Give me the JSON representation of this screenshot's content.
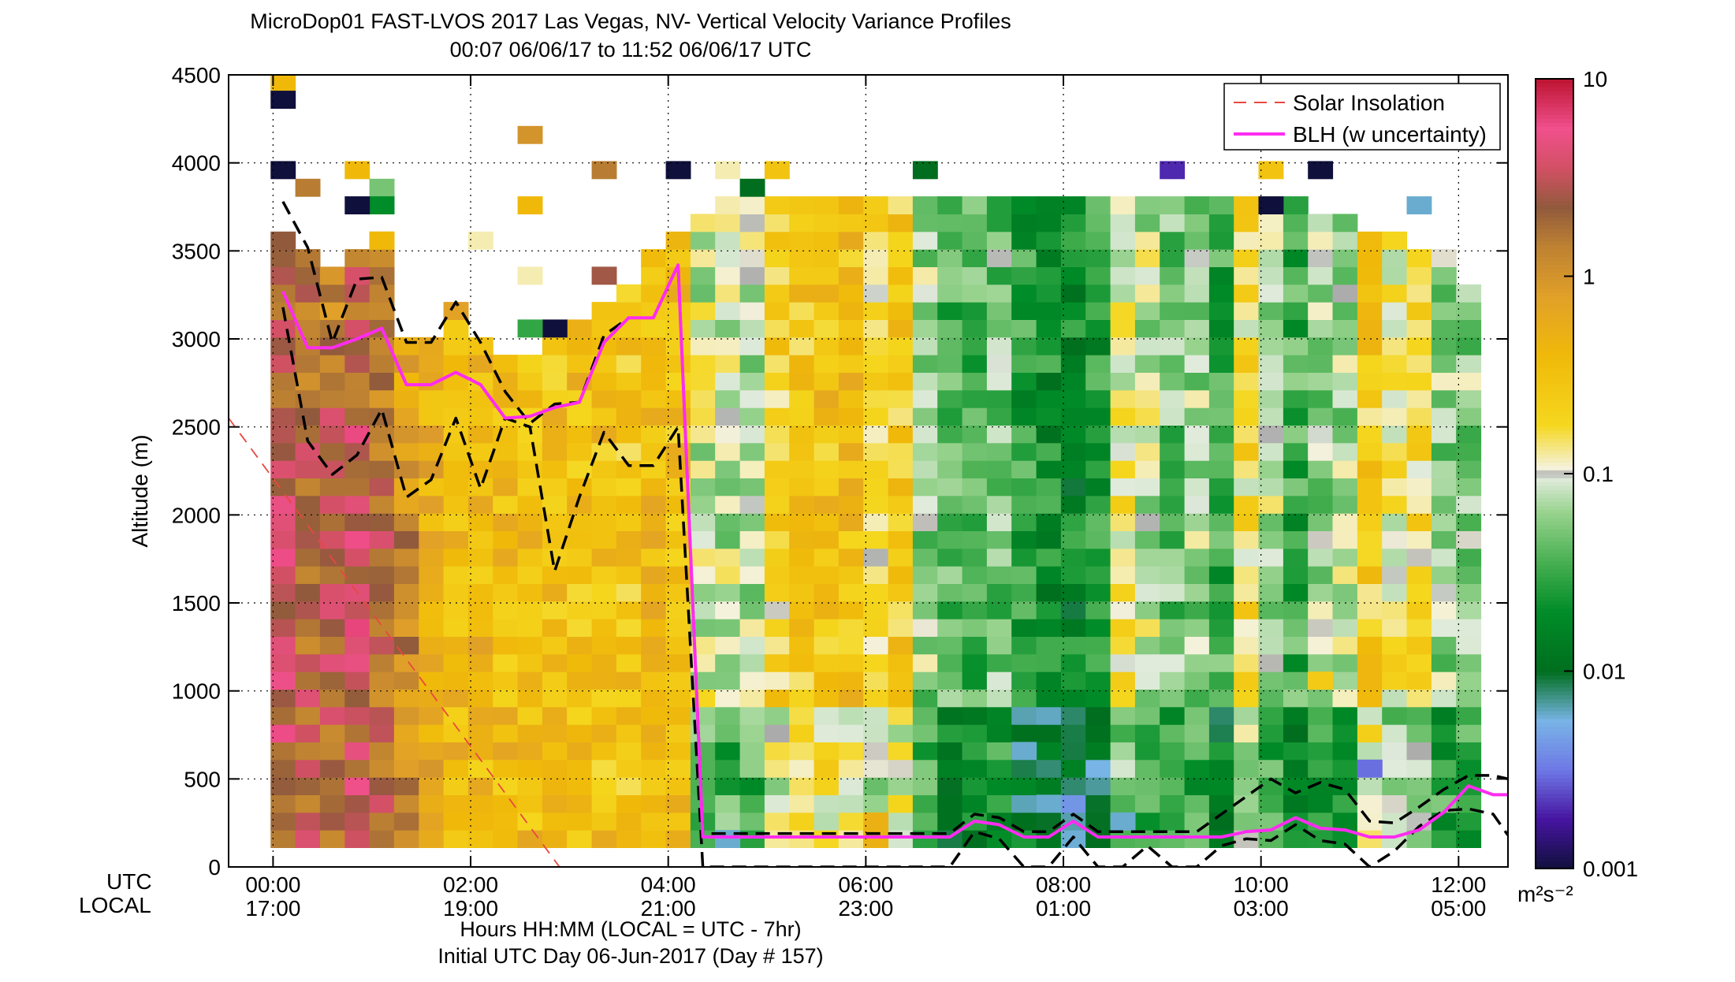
{
  "chart_data": {
    "type": "heatmap",
    "title": "MicroDop01 FAST-LVOS 2017 Las Vegas, NV- Vertical Velocity Variance Profiles",
    "subtitle": "00:07 06/06/17 to 11:52 06/06/17  UTC",
    "xlabel": "Hours HH:MM  (LOCAL = UTC - 7hr)",
    "xlabel2": "Initial UTC Day 06-Jun-2017 (Day # 157)",
    "ylabel": "Altitude (m)",
    "x_row_tags": [
      "UTC",
      "LOCAL"
    ],
    "x_ticks_utc": [
      "00:00",
      "02:00",
      "04:00",
      "06:00",
      "08:00",
      "10:00",
      "12:00"
    ],
    "x_ticks_local": [
      "17:00",
      "19:00",
      "21:00",
      "23:00",
      "01:00",
      "03:00",
      "05:00"
    ],
    "x_tick_hours": [
      0,
      2,
      4,
      6,
      8,
      10,
      12
    ],
    "xlim_hours": [
      -0.45,
      12.5
    ],
    "y_ticks": [
      0,
      500,
      1000,
      1500,
      2000,
      2500,
      3000,
      3500,
      4000,
      4500
    ],
    "ylim": [
      0,
      4500
    ],
    "grid": true,
    "colorbar": {
      "scale": "log",
      "range": [
        0.001,
        10
      ],
      "tick_labels": [
        "0.001",
        "0.01",
        "0.1",
        "1",
        "10"
      ],
      "units": "m²s⁻²"
    },
    "legend": {
      "placement": "top-right",
      "entries": [
        "Solar Insolation",
        "BLH (w uncertainty)"
      ]
    },
    "series": [
      {
        "name": "BLH (w uncertainty)",
        "x": [
          0.1,
          0.35,
          0.6,
          0.85,
          1.1,
          1.35,
          1.6,
          1.85,
          2.1,
          2.35,
          2.6,
          2.85,
          3.1,
          3.35,
          3.6,
          3.85,
          4.1,
          4.35,
          4.6,
          4.85,
          5.1,
          5.35,
          5.6,
          5.85,
          6.1,
          6.35,
          6.6,
          6.85,
          7.1,
          7.35,
          7.6,
          7.85,
          8.1,
          8.35,
          8.6,
          8.85,
          9.1,
          9.35,
          9.6,
          9.85,
          10.1,
          10.35,
          10.6,
          10.85,
          11.1,
          11.35,
          11.6,
          11.85,
          12.1,
          12.35,
          12.5
        ],
        "y": [
          3270,
          2950,
          2950,
          3000,
          3060,
          2740,
          2740,
          2810,
          2740,
          2550,
          2560,
          2610,
          2640,
          2980,
          3120,
          3120,
          3420,
          170,
          170,
          170,
          170,
          170,
          170,
          170,
          170,
          170,
          170,
          170,
          260,
          240,
          170,
          170,
          260,
          170,
          170,
          170,
          170,
          170,
          170,
          200,
          210,
          280,
          220,
          210,
          170,
          170,
          210,
          310,
          460,
          410,
          410
        ]
      },
      {
        "name": "BLH upper bound",
        "x": [
          0.1,
          0.35,
          0.6,
          0.85,
          1.1,
          1.35,
          1.6,
          1.85,
          2.1,
          2.35,
          2.6,
          2.85,
          3.1,
          3.35,
          3.6,
          3.85,
          4.1,
          4.35,
          4.6,
          4.85,
          5.1,
          5.35,
          5.6,
          5.85,
          6.1,
          6.35,
          6.6,
          6.85,
          7.1,
          7.35,
          7.6,
          7.85,
          8.1,
          8.35,
          8.6,
          8.85,
          9.1,
          9.35,
          9.6,
          9.85,
          10.1,
          10.35,
          10.6,
          10.85,
          11.1,
          11.35,
          11.6,
          11.85,
          12.1,
          12.35,
          12.5
        ],
        "y": [
          3780,
          3520,
          2980,
          3340,
          3350,
          2980,
          2980,
          3210,
          2980,
          2700,
          2520,
          2630,
          2640,
          3020,
          3120,
          3120,
          3420,
          190,
          190,
          190,
          190,
          190,
          190,
          190,
          190,
          190,
          190,
          190,
          300,
          280,
          200,
          200,
          300,
          200,
          200,
          200,
          200,
          200,
          300,
          400,
          500,
          420,
          480,
          440,
          260,
          250,
          340,
          440,
          520,
          520,
          500
        ]
      },
      {
        "name": "BLH lower bound",
        "x": [
          0.1,
          0.35,
          0.6,
          0.85,
          1.1,
          1.35,
          1.6,
          1.85,
          2.1,
          2.35,
          2.6,
          2.85,
          3.1,
          3.35,
          3.6,
          3.85,
          4.1,
          4.35,
          4.6,
          4.85,
          5.1,
          5.35,
          5.6,
          5.85,
          6.1,
          6.35,
          6.6,
          6.85,
          7.1,
          7.35,
          7.6,
          7.85,
          8.1,
          8.35,
          8.6,
          8.85,
          9.1,
          9.35,
          9.6,
          9.85,
          10.1,
          10.35,
          10.6,
          10.85,
          11.1,
          11.35,
          11.6,
          11.85,
          12.1,
          12.35,
          12.5
        ],
        "y": [
          3180,
          2420,
          2230,
          2340,
          2600,
          2100,
          2200,
          2550,
          2150,
          2550,
          2500,
          1680,
          2100,
          2470,
          2280,
          2280,
          2500,
          0,
          0,
          0,
          0,
          0,
          0,
          0,
          0,
          0,
          0,
          0,
          200,
          160,
          0,
          0,
          170,
          0,
          0,
          120,
          0,
          0,
          120,
          160,
          150,
          240,
          150,
          130,
          0,
          90,
          230,
          320,
          330,
          300,
          180
        ]
      },
      {
        "name": "Solar Insolation",
        "x": [
          -0.45,
          2.9
        ],
        "y": [
          2550,
          0
        ]
      }
    ],
    "heatmap": {
      "x_centers_hours": [
        0.1,
        0.35,
        0.6,
        0.85,
        1.1,
        1.35,
        1.6,
        1.85,
        2.1,
        2.35,
        2.6,
        2.85,
        3.1,
        3.35,
        3.6,
        3.85,
        4.1,
        4.35,
        4.6,
        4.85,
        5.1,
        5.35,
        5.6,
        5.85,
        6.1,
        6.35,
        6.6,
        6.85,
        7.1,
        7.35,
        7.6,
        7.85,
        8.1,
        8.35,
        8.6,
        8.85,
        9.1,
        9.35,
        9.6,
        9.85,
        10.1,
        10.35,
        10.6,
        10.85,
        11.1,
        11.35,
        11.6,
        11.85,
        12.1
      ],
      "gate_centers_m": [
        160,
        260,
        360,
        460,
        560,
        660,
        760,
        860,
        960,
        1060,
        1160,
        1260,
        1360,
        1460,
        1560,
        1660,
        1760,
        1860,
        1960,
        2060,
        2160,
        2260,
        2360,
        2460,
        2560,
        2660,
        2760,
        2860,
        2960,
        3060,
        3160,
        3260,
        3360,
        3460,
        3560,
        3660,
        3760,
        3860,
        3960,
        4060,
        4160,
        4260,
        4360,
        4460
      ],
      "value_units": "m²s⁻²",
      "profile_top_m": [
        3560,
        3460,
        3360,
        3460,
        3560,
        2960,
        2960,
        3160,
        2960,
        2860,
        2860,
        2960,
        3060,
        3160,
        3260,
        3460,
        3560,
        3660,
        3760,
        3760,
        3760,
        3760,
        3760,
        3760,
        3760,
        3760,
        3760,
        3760,
        3760,
        3760,
        3760,
        3760,
        3760,
        3760,
        3760,
        3760,
        3760,
        3760,
        3760,
        3760,
        3760,
        3760,
        3660,
        3660,
        3560,
        3560,
        3460,
        3460,
        3260
      ],
      "profile_log10_mean": [
        0.28,
        0.15,
        0.15,
        0.3,
        0.1,
        -0.15,
        -0.3,
        -0.4,
        -0.4,
        -0.45,
        -0.45,
        -0.5,
        -0.5,
        -0.5,
        -0.55,
        -0.45,
        -0.5,
        -1.05,
        -1.1,
        -1.1,
        -0.7,
        -0.55,
        -0.5,
        -0.5,
        -0.8,
        -0.6,
        -1.2,
        -1.4,
        -1.45,
        -1.3,
        -1.55,
        -1.7,
        -1.75,
        -1.6,
        -0.9,
        -1.1,
        -1.3,
        -1.2,
        -1.5,
        -0.8,
        -1.1,
        -1.5,
        -1.2,
        -1.15,
        -0.6,
        -0.9,
        -0.8,
        -1.2,
        -1.2
      ],
      "sparse_cells": [
        {
          "x": 0.1,
          "z": 4460,
          "v": 0.4
        },
        {
          "x": 0.1,
          "z": 4360,
          "v": 0.001
        },
        {
          "x": 0.1,
          "z": 3960,
          "v": 0.001
        },
        {
          "x": 0.35,
          "z": 3860,
          "v": 1.5
        },
        {
          "x": 0.85,
          "z": 3960,
          "v": 0.4
        },
        {
          "x": 1.1,
          "z": 3860,
          "v": 0.05
        },
        {
          "x": 1.1,
          "z": 3760,
          "v": 0.02
        },
        {
          "x": 0.85,
          "z": 3760,
          "v": 0.001
        },
        {
          "x": 1.1,
          "z": 3560,
          "v": 0.4
        },
        {
          "x": 2.1,
          "z": 3560,
          "v": 0.12
        },
        {
          "x": 2.6,
          "z": 4160,
          "v": 1.0
        },
        {
          "x": 2.6,
          "z": 3760,
          "v": 0.4
        },
        {
          "x": 2.6,
          "z": 3360,
          "v": 0.12
        },
        {
          "x": 3.35,
          "z": 3960,
          "v": 1.5
        },
        {
          "x": 3.35,
          "z": 3360,
          "v": 2.5
        },
        {
          "x": 2.85,
          "z": 3060,
          "v": 0.001
        },
        {
          "x": 2.6,
          "z": 3060,
          "v": 0.03
        },
        {
          "x": 4.1,
          "z": 3960,
          "v": 0.001
        },
        {
          "x": 4.6,
          "z": 3960,
          "v": 0.12
        },
        {
          "x": 4.85,
          "z": 3860,
          "v": 0.01
        },
        {
          "x": 5.1,
          "z": 3960,
          "v": 0.3
        },
        {
          "x": 6.6,
          "z": 3960,
          "v": 0.01
        },
        {
          "x": 9.1,
          "z": 3960,
          "v": 0.002
        },
        {
          "x": 10.1,
          "z": 3960,
          "v": 0.3
        },
        {
          "x": 10.6,
          "z": 3960,
          "v": 0.001
        },
        {
          "x": 11.6,
          "z": 3760,
          "v": 0.006
        },
        {
          "x": 10.1,
          "z": 3760,
          "v": 0.001
        },
        {
          "x": 10.6,
          "z": 1060,
          "v": 0.25
        },
        {
          "x": 11.1,
          "z": 560,
          "v": 0.003
        },
        {
          "x": 7.6,
          "z": 660,
          "v": 0.006
        },
        {
          "x": 7.85,
          "z": 360,
          "v": 0.006
        },
        {
          "x": 8.6,
          "z": 260,
          "v": 0.006
        },
        {
          "x": 4.6,
          "z": 160,
          "v": 0.006
        },
        {
          "x": 6.1,
          "z": 260,
          "v": 0.5
        },
        {
          "x": 6.1,
          "z": 160,
          "v": 0.5
        }
      ]
    }
  }
}
